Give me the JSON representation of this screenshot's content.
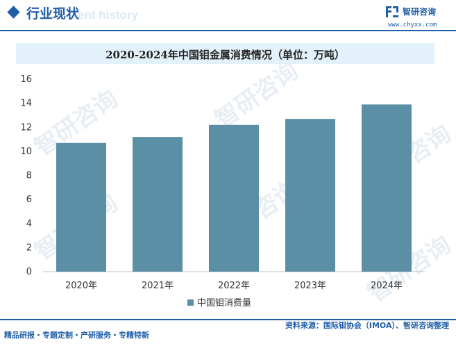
{
  "header": {
    "section_title": "行业现状",
    "section_subtitle": "ent history",
    "brand_name": "智研咨询",
    "brand_url": "www.chyxx.com",
    "brand_logo_icon": "chyxx-logo-icon",
    "accent_color": "#1f5fa8"
  },
  "watermark": {
    "text": "智研咨询"
  },
  "chart_data": {
    "type": "bar",
    "title": "2020-2024年中国钼金属消费情况（单位：万吨）",
    "categories": [
      "2020年",
      "2021年",
      "2022年",
      "2023年",
      "2024年"
    ],
    "series": [
      {
        "name": "中国钼消费量",
        "values": [
          10.7,
          11.2,
          12.2,
          12.7,
          13.9
        ],
        "color": "#5b8fa6"
      }
    ],
    "yticks": [
      "0",
      "2",
      "4",
      "6",
      "8",
      "10",
      "12",
      "14",
      "16"
    ],
    "ylim": [
      0,
      16
    ],
    "grid": false,
    "legend_position": "bottom"
  },
  "footer": {
    "left_text": "精品研报・专题定制・产研服务・专精特新",
    "source_text": "资料来源：国际钼协会（IMOA）、智研咨询整理"
  }
}
